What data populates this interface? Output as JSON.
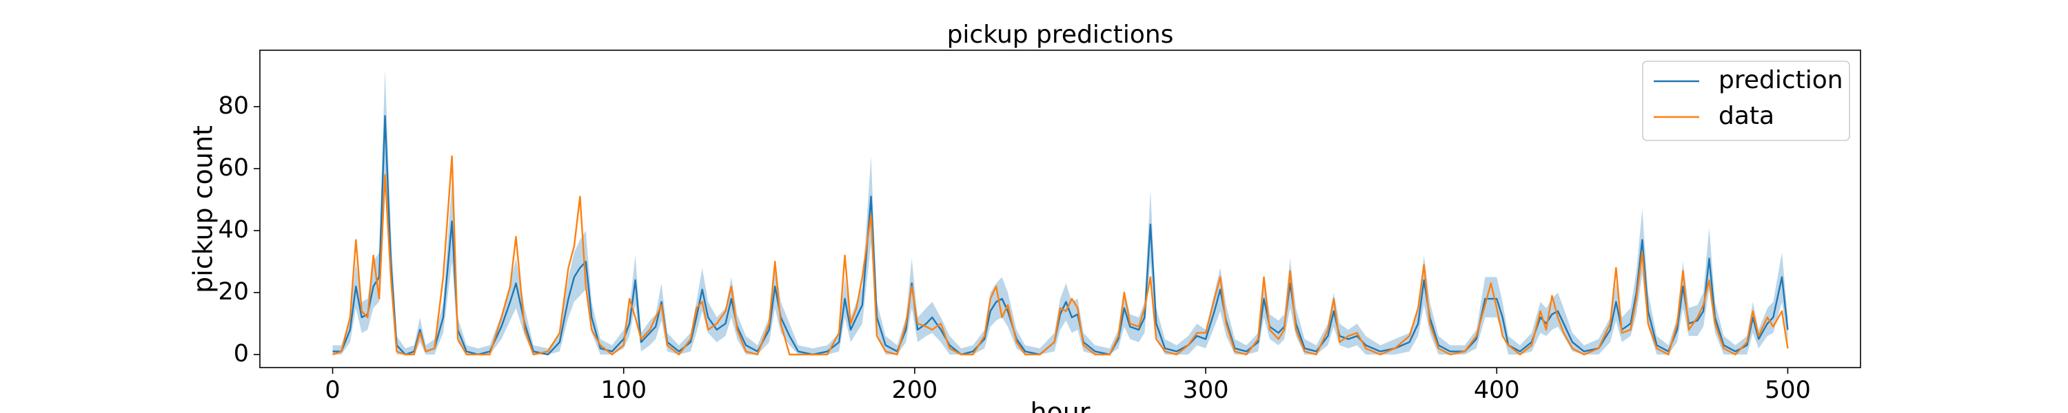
{
  "chart_data": {
    "type": "line",
    "title": "pickup predictions",
    "xlabel": "hour",
    "ylabel": "pickup count",
    "x": [
      0,
      3,
      6,
      8,
      10,
      12,
      14,
      16,
      18,
      20,
      22,
      25,
      28,
      30,
      32,
      35,
      38,
      41,
      43,
      46,
      50,
      54,
      58,
      61,
      63,
      66,
      69,
      74,
      78,
      81,
      83,
      85,
      87,
      89,
      92,
      96,
      100,
      102,
      104,
      106,
      109,
      111,
      113,
      115,
      119,
      123,
      125,
      127,
      129,
      132,
      135,
      137,
      139,
      142,
      146,
      150,
      152,
      154,
      157,
      160,
      165,
      170,
      174,
      176,
      178,
      180,
      182,
      185,
      187,
      190,
      194,
      197,
      199,
      201,
      204,
      206,
      209,
      212,
      216,
      220,
      224,
      226,
      228,
      230,
      232,
      235,
      238,
      243,
      248,
      250,
      252,
      254,
      256,
      258,
      262,
      267,
      270,
      272,
      274,
      277,
      279,
      281,
      283,
      286,
      290,
      294,
      297,
      300,
      303,
      305,
      307,
      310,
      314,
      318,
      320,
      322,
      325,
      327,
      329,
      331,
      334,
      338,
      342,
      344,
      346,
      349,
      352,
      355,
      360,
      365,
      370,
      373,
      375,
      377,
      380,
      384,
      389,
      393,
      396,
      398,
      400,
      402,
      404,
      408,
      412,
      415,
      417,
      419,
      421,
      423,
      426,
      430,
      435,
      439,
      441,
      443,
      446,
      448,
      450,
      452,
      455,
      459,
      462,
      464,
      466,
      469,
      471,
      473,
      475,
      478,
      482,
      486,
      488,
      490,
      493,
      495,
      498,
      500
    ],
    "series": [
      {
        "name": "prediction",
        "color": "#1f77b4",
        "band_color": "#1f77b4",
        "band_opacity": 0.3,
        "values": [
          1,
          1,
          8,
          22,
          12,
          13,
          22,
          25,
          77,
          30,
          3,
          0,
          1,
          8,
          1,
          2,
          12,
          43,
          8,
          1,
          0,
          1,
          9,
          17,
          23,
          10,
          1,
          0,
          4,
          18,
          25,
          28,
          30,
          12,
          2,
          1,
          5,
          10,
          24,
          4,
          7,
          9,
          17,
          4,
          1,
          4,
          12,
          21,
          12,
          8,
          10,
          18,
          9,
          3,
          1,
          8,
          22,
          12,
          6,
          1,
          0,
          1,
          4,
          18,
          8,
          12,
          16,
          51,
          12,
          3,
          1,
          8,
          23,
          8,
          10,
          12,
          8,
          3,
          0,
          1,
          5,
          14,
          17,
          18,
          14,
          5,
          1,
          0,
          4,
          13,
          17,
          12,
          13,
          4,
          1,
          0,
          5,
          15,
          9,
          8,
          12,
          42,
          10,
          2,
          1,
          3,
          6,
          5,
          14,
          21,
          11,
          2,
          1,
          4,
          18,
          9,
          7,
          9,
          23,
          10,
          2,
          1,
          6,
          14,
          6,
          5,
          6,
          3,
          1,
          2,
          4,
          10,
          24,
          12,
          3,
          1,
          1,
          5,
          18,
          18,
          18,
          12,
          3,
          1,
          4,
          12,
          10,
          13,
          14,
          10,
          4,
          1,
          2,
          8,
          17,
          8,
          10,
          20,
          37,
          14,
          3,
          1,
          8,
          22,
          10,
          11,
          14,
          31,
          12,
          3,
          1,
          3,
          12,
          5,
          10,
          12,
          25,
          8
        ],
        "band_lower": [
          0,
          0,
          4,
          15,
          7,
          8,
          15,
          17,
          56,
          21,
          0,
          0,
          0,
          4,
          0,
          0,
          7,
          30,
          4,
          0,
          0,
          0,
          5,
          11,
          15,
          6,
          0,
          0,
          1,
          12,
          17,
          19,
          21,
          7,
          0,
          0,
          2,
          6,
          16,
          1,
          3,
          5,
          11,
          1,
          0,
          1,
          7,
          14,
          7,
          4,
          6,
          12,
          5,
          0,
          0,
          4,
          15,
          7,
          3,
          0,
          0,
          0,
          1,
          12,
          4,
          7,
          10,
          36,
          7,
          0,
          0,
          4,
          15,
          4,
          6,
          7,
          4,
          0,
          0,
          0,
          2,
          9,
          11,
          12,
          9,
          2,
          0,
          0,
          1,
          8,
          11,
          7,
          8,
          1,
          0,
          0,
          2,
          9,
          5,
          4,
          7,
          30,
          6,
          0,
          0,
          0,
          3,
          2,
          9,
          14,
          6,
          0,
          0,
          1,
          12,
          5,
          3,
          5,
          15,
          6,
          0,
          0,
          3,
          9,
          3,
          2,
          3,
          0,
          0,
          0,
          1,
          6,
          16,
          7,
          0,
          0,
          0,
          2,
          12,
          12,
          12,
          7,
          0,
          0,
          1,
          7,
          6,
          8,
          9,
          6,
          1,
          0,
          0,
          4,
          11,
          4,
          6,
          13,
          26,
          9,
          0,
          0,
          4,
          15,
          6,
          6,
          9,
          21,
          7,
          0,
          0,
          0,
          7,
          2,
          6,
          7,
          17,
          4
        ],
        "band_upper": [
          3,
          3,
          12,
          30,
          17,
          18,
          30,
          33,
          92,
          40,
          6,
          2,
          3,
          12,
          3,
          5,
          17,
          56,
          12,
          3,
          2,
          3,
          13,
          23,
          31,
          15,
          3,
          2,
          7,
          25,
          33,
          37,
          40,
          17,
          5,
          3,
          8,
          15,
          32,
          7,
          11,
          13,
          23,
          7,
          3,
          7,
          17,
          28,
          17,
          12,
          15,
          25,
          13,
          6,
          3,
          12,
          30,
          17,
          10,
          3,
          2,
          3,
          7,
          25,
          12,
          17,
          22,
          64,
          17,
          6,
          3,
          12,
          31,
          12,
          15,
          17,
          12,
          6,
          2,
          3,
          8,
          20,
          23,
          25,
          20,
          8,
          3,
          2,
          7,
          18,
          23,
          17,
          18,
          7,
          3,
          2,
          8,
          21,
          13,
          12,
          17,
          53,
          15,
          5,
          3,
          6,
          10,
          8,
          20,
          28,
          16,
          5,
          3,
          7,
          25,
          13,
          11,
          13,
          31,
          15,
          5,
          3,
          10,
          20,
          10,
          8,
          10,
          6,
          3,
          5,
          7,
          15,
          32,
          17,
          6,
          3,
          3,
          8,
          25,
          25,
          25,
          17,
          6,
          3,
          7,
          17,
          15,
          18,
          20,
          15,
          7,
          3,
          5,
          12,
          23,
          12,
          15,
          27,
          47,
          20,
          6,
          3,
          12,
          30,
          15,
          16,
          20,
          41,
          17,
          6,
          3,
          6,
          17,
          8,
          15,
          17,
          33,
          12
        ]
      },
      {
        "name": "data",
        "color": "#ff7f0e",
        "values": [
          0,
          1,
          12,
          37,
          14,
          12,
          32,
          18,
          58,
          25,
          1,
          0,
          0,
          7,
          1,
          2,
          25,
          64,
          5,
          0,
          0,
          0,
          12,
          22,
          38,
          8,
          0,
          1,
          7,
          28,
          35,
          51,
          22,
          8,
          3,
          0,
          3,
          18,
          12,
          5,
          8,
          12,
          16,
          3,
          0,
          5,
          15,
          17,
          8,
          10,
          14,
          22,
          8,
          1,
          0,
          10,
          30,
          10,
          0,
          0,
          0,
          0,
          7,
          32,
          10,
          15,
          25,
          45,
          6,
          1,
          0,
          10,
          22,
          10,
          9,
          8,
          10,
          2,
          0,
          0,
          6,
          18,
          22,
          12,
          16,
          4,
          0,
          0,
          4,
          15,
          14,
          18,
          15,
          3,
          0,
          0,
          6,
          20,
          10,
          9,
          15,
          25,
          5,
          1,
          0,
          3,
          7,
          7,
          18,
          25,
          10,
          1,
          0,
          5,
          25,
          8,
          5,
          8,
          27,
          8,
          1,
          0,
          8,
          18,
          4,
          6,
          7,
          2,
          0,
          2,
          6,
          15,
          29,
          10,
          2,
          0,
          1,
          6,
          16,
          23,
          15,
          6,
          3,
          0,
          3,
          14,
          8,
          19,
          12,
          7,
          2,
          0,
          2,
          10,
          28,
          7,
          8,
          18,
          33,
          10,
          2,
          0,
          10,
          27,
          8,
          12,
          16,
          24,
          10,
          2,
          0,
          4,
          14,
          6,
          12,
          9,
          14,
          2
        ]
      }
    ],
    "xlim": [
      -25,
      525
    ],
    "ylim": [
      -4.2,
      98.2
    ],
    "xticks": [
      0,
      100,
      200,
      300,
      400,
      500
    ],
    "yticks": [
      0,
      20,
      40,
      60,
      80
    ],
    "legend": "upper right"
  }
}
